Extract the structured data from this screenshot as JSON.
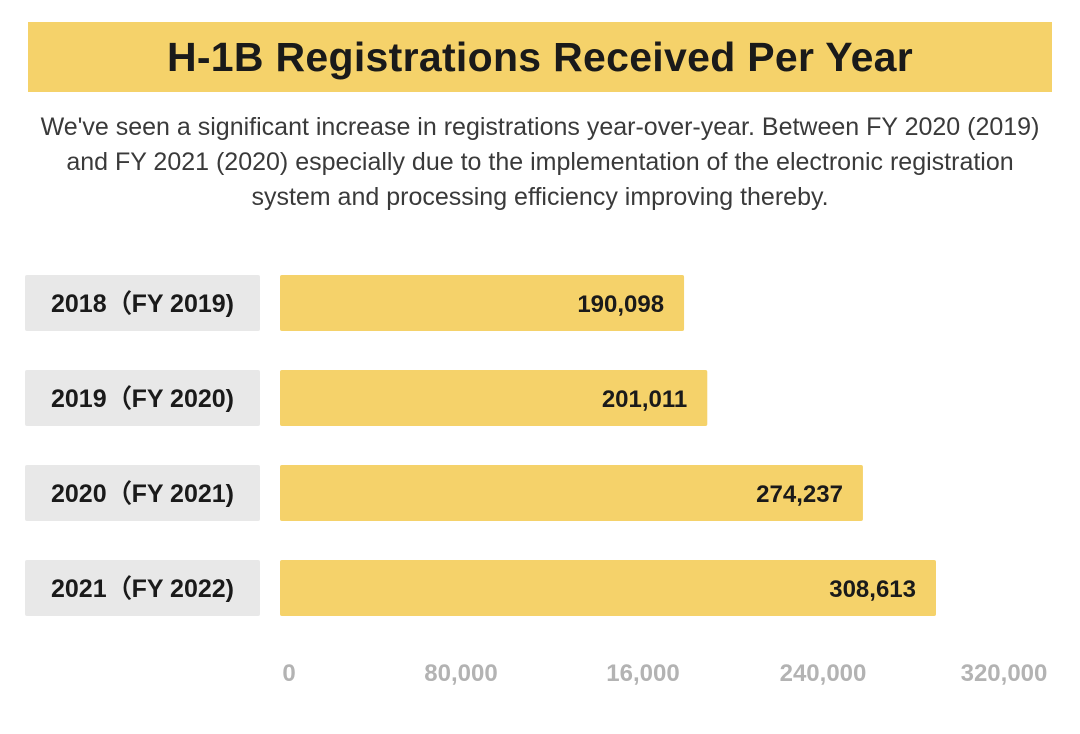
{
  "header": {
    "title": "H-1B Registrations Received Per Year",
    "subtitle": "We've seen a significant increase in registrations year-over-year. Between FY 2020 (2019) and FY 2021 (2020) especially due to the implementation of the electronic registration system and processing efficiency improving thereby."
  },
  "colors": {
    "bar": "#f5d26a",
    "label_box": "#e8e8e8",
    "title_banner": "#f5d26a",
    "tick_text": "#b3b3b3"
  },
  "chart_data": {
    "type": "bar",
    "orientation": "horizontal",
    "title": "H-1B Registrations Received Per Year",
    "categories": [
      "2018（FY 2019)",
      "2019（FY 2020)",
      "2020（FY 2021)",
      "2021（FY 2022)"
    ],
    "values": [
      190098,
      201011,
      274237,
      308613
    ],
    "value_labels": [
      "190,098",
      "201,011",
      "274,237",
      "308,613"
    ],
    "x_ticks": [
      "0",
      "80,000",
      "16,000",
      "240,000",
      "320,000"
    ],
    "xlim": [
      0,
      320000
    ],
    "xlabel": "",
    "ylabel": "",
    "grid": false,
    "legend": "none"
  }
}
